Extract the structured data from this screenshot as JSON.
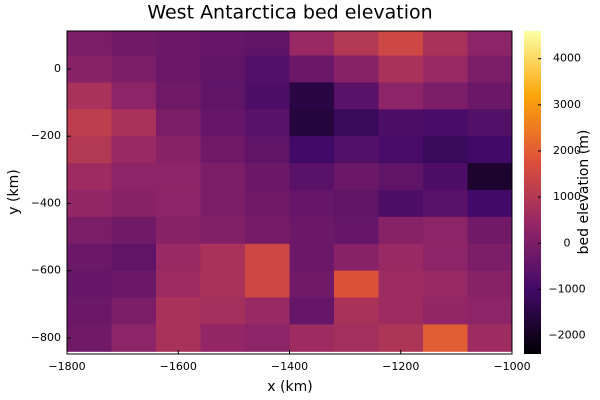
{
  "chart_data": {
    "type": "heatmap",
    "title": "West Antarctica bed elevation",
    "xlabel": "x (km)",
    "ylabel": "y (km)",
    "colorbar_label": "bed elevation (m)",
    "colormap": [
      "#000004",
      "#420a68",
      "#932667",
      "#dd513a",
      "#fca50a",
      "#fcffa4"
    ],
    "x": [
      -1760,
      -1680,
      -1600,
      -1520,
      -1440,
      -1360,
      -1280,
      -1200,
      -1120,
      -1040
    ],
    "y": [
      80,
      0,
      -80,
      -160,
      -240,
      -320,
      -400,
      -480,
      -560,
      -640,
      -720,
      -800
    ],
    "z": [
      [
        0,
        -200,
        -300,
        -400,
        -500,
        500,
        1000,
        1500,
        800,
        300
      ],
      [
        200,
        0,
        -300,
        -500,
        -700,
        -300,
        200,
        800,
        500,
        0
      ],
      [
        800,
        300,
        -200,
        -500,
        -800,
        -1500,
        -600,
        300,
        0,
        -300
      ],
      [
        1200,
        800,
        0,
        -400,
        -600,
        -1600,
        -1200,
        -800,
        -900,
        -700
      ],
      [
        1000,
        500,
        200,
        -200,
        -500,
        -1000,
        -700,
        -900,
        -1200,
        -1000
      ],
      [
        600,
        300,
        300,
        0,
        -300,
        -600,
        -300,
        -500,
        -800,
        -1800
      ],
      [
        400,
        200,
        300,
        0,
        -200,
        -400,
        -500,
        -800,
        -600,
        -1000
      ],
      [
        0,
        -200,
        200,
        100,
        -100,
        -300,
        -400,
        200,
        300,
        -200
      ],
      [
        -300,
        -500,
        500,
        800,
        1500,
        -300,
        200,
        500,
        300,
        0
      ],
      [
        -400,
        -300,
        600,
        800,
        1500,
        -200,
        1800,
        600,
        500,
        200
      ],
      [
        -300,
        0,
        800,
        700,
        500,
        -400,
        800,
        600,
        400,
        300
      ],
      [
        -200,
        300,
        800,
        400,
        300,
        600,
        700,
        900,
        2000,
        600
      ]
    ],
    "xlim": [
      -1800,
      -1000
    ],
    "ylim": [
      -848,
      113
    ],
    "clim": [
      -2400,
      4600
    ],
    "xticks": [
      {
        "value": -1800,
        "label": "−1800"
      },
      {
        "value": -1600,
        "label": "−1600"
      },
      {
        "value": -1400,
        "label": "−1400"
      },
      {
        "value": -1200,
        "label": "−1200"
      },
      {
        "value": -1000,
        "label": "−1000"
      }
    ],
    "yticks": [
      0,
      {
        "value": -200,
        "label": "−200"
      },
      {
        "value": -400,
        "label": "−400"
      },
      {
        "value": -600,
        "label": "−600"
      },
      {
        "value": -800,
        "label": "−800"
      }
    ],
    "cticks": [
      4000,
      3000,
      2000,
      1000,
      0,
      {
        "value": -1000,
        "label": "−1000"
      },
      {
        "value": -2000,
        "label": "−2000"
      }
    ]
  }
}
